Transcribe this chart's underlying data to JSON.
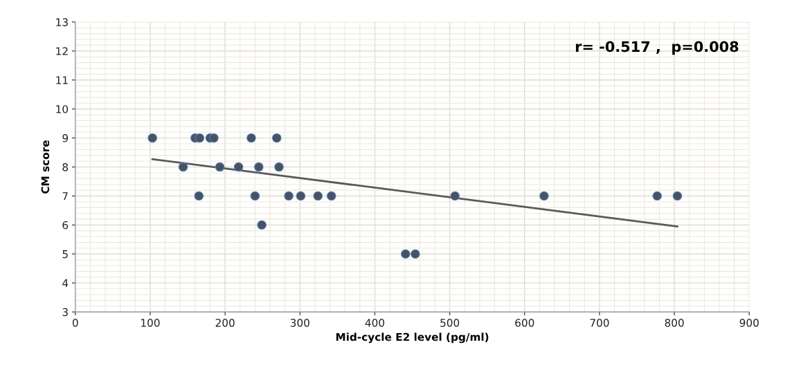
{
  "chart_data": {
    "type": "scatter",
    "xlabel": "Mid-cycle E2 level (pg/ml)",
    "ylabel": "CM score",
    "annotations": [
      "r= -0.517 ,  p=0.008"
    ],
    "xlim": [
      0,
      900
    ],
    "xticks": [
      0,
      100,
      200,
      300,
      400,
      500,
      600,
      700,
      800,
      900
    ],
    "ylim": [
      3,
      13
    ],
    "yticks": [
      3,
      4,
      5,
      6,
      7,
      8,
      9,
      10,
      11,
      12,
      13
    ],
    "grid": true,
    "series": [
      {
        "marker": "circle",
        "color": "#4a5261",
        "x": [
          103,
          160,
          166,
          180,
          185,
          235,
          269,
          144,
          193,
          218,
          245,
          272,
          165,
          240,
          285,
          301,
          324,
          342,
          249,
          441,
          454,
          507,
          626,
          777,
          804
        ],
        "values": [
          9,
          9,
          9,
          9,
          9,
          9,
          9,
          8,
          8,
          8,
          8,
          8,
          7,
          7,
          7,
          7,
          7,
          7,
          6,
          5,
          5,
          7,
          7,
          7,
          7
        ]
      },
      {
        "type": "line",
        "color": "#595959",
        "x": [
          103,
          804
        ],
        "values": [
          8.27,
          5.95
        ]
      }
    ]
  }
}
